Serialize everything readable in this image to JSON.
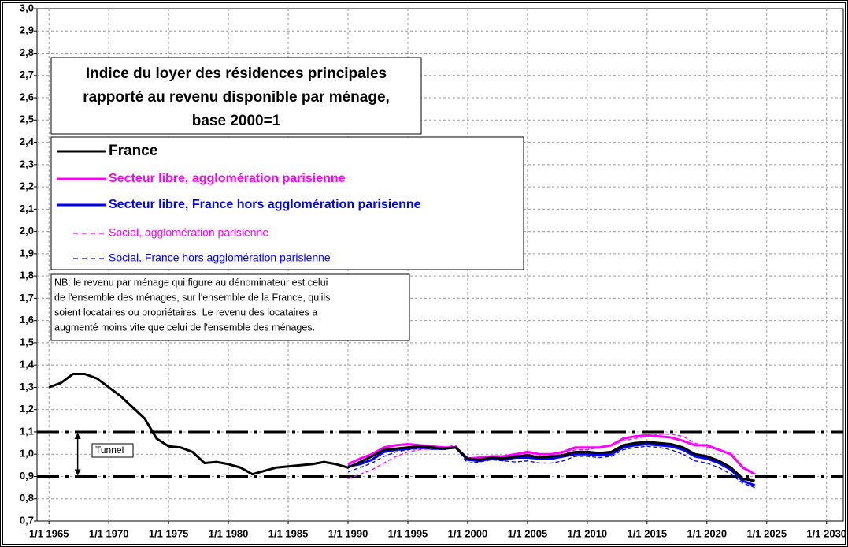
{
  "chart_data": {
    "type": "line",
    "title": [
      "Indice du loyer des résidences principales",
      "rapporté au revenu disponible par ménage,",
      "base 2000=1"
    ],
    "note": [
      "NB: le revenu par ménage qui figure au dénominateur est celui",
      "de l'ensemble des ménages, sur l'ensemble de la France, qu'ils",
      "soient locataires ou propriétaires.  Le revenu des locataires a",
      "augmenté moins vite que celui de l'ensemble des ménages."
    ],
    "annotation": "Tunnel",
    "reference_lines": [
      1.1,
      0.9
    ],
    "x": [
      1965,
      1966,
      1967,
      1968,
      1969,
      1970,
      1971,
      1972,
      1973,
      1974,
      1975,
      1976,
      1977,
      1978,
      1979,
      1980,
      1981,
      1982,
      1983,
      1984,
      1985,
      1986,
      1987,
      1988,
      1989,
      1990,
      1991,
      1992,
      1993,
      1994,
      1995,
      1996,
      1997,
      1998,
      1999,
      2000,
      2001,
      2002,
      2003,
      2004,
      2005,
      2006,
      2007,
      2008,
      2009,
      2010,
      2011,
      2012,
      2013,
      2014,
      2015,
      2016,
      2017,
      2018,
      2019,
      2020,
      2021,
      2022,
      2023,
      2024
    ],
    "series": [
      {
        "name": "France",
        "color": "#000000",
        "dashed": false,
        "bold": true,
        "values": [
          1.3,
          1.32,
          1.36,
          1.36,
          1.34,
          1.3,
          1.26,
          1.21,
          1.16,
          1.07,
          1.035,
          1.03,
          1.01,
          0.96,
          0.965,
          0.955,
          0.94,
          0.91,
          0.925,
          0.94,
          0.945,
          0.95,
          0.955,
          0.965,
          0.955,
          0.94,
          0.965,
          0.99,
          1.02,
          1.025,
          1.03,
          1.035,
          1.03,
          1.025,
          1.03,
          0.98,
          0.975,
          0.985,
          0.98,
          0.99,
          0.995,
          0.985,
          0.99,
          0.995,
          1.01,
          1.01,
          1.005,
          1.01,
          1.04,
          1.05,
          1.055,
          1.05,
          1.045,
          1.03,
          1.0,
          0.99,
          0.97,
          0.94,
          0.89,
          0.88
        ]
      },
      {
        "name": "Secteur libre, agglomération parisienne",
        "color": "#ff00ff",
        "dashed": false,
        "bold": true,
        "values": [
          null,
          null,
          null,
          null,
          null,
          null,
          null,
          null,
          null,
          null,
          null,
          null,
          null,
          null,
          null,
          null,
          null,
          null,
          null,
          null,
          null,
          null,
          null,
          null,
          null,
          0.955,
          0.98,
          1.0,
          1.03,
          1.04,
          1.045,
          1.04,
          1.035,
          1.03,
          1.03,
          0.98,
          0.985,
          0.99,
          0.99,
          1.0,
          1.01,
          1.0,
          1.0,
          1.01,
          1.03,
          1.03,
          1.03,
          1.04,
          1.07,
          1.08,
          1.085,
          1.08,
          1.075,
          1.06,
          1.04,
          1.04,
          1.02,
          1.0,
          0.94,
          0.91
        ]
      },
      {
        "name": "Secteur libre, France hors agglomération parisienne",
        "color": "#0000ff",
        "dashed": false,
        "bold": true,
        "values": [
          null,
          null,
          null,
          null,
          null,
          null,
          null,
          null,
          null,
          null,
          null,
          null,
          null,
          null,
          null,
          null,
          null,
          null,
          null,
          null,
          null,
          null,
          null,
          null,
          null,
          0.945,
          0.955,
          0.975,
          1.01,
          1.02,
          1.025,
          1.03,
          1.025,
          1.025,
          1.03,
          0.975,
          0.97,
          0.98,
          0.975,
          0.985,
          0.985,
          0.98,
          0.98,
          0.99,
          1.0,
          1.0,
          0.995,
          1.0,
          1.03,
          1.04,
          1.045,
          1.04,
          1.035,
          1.02,
          0.99,
          0.98,
          0.96,
          0.93,
          0.88,
          0.86
        ]
      },
      {
        "name": "Social, agglomération parisienne",
        "color": "#ff00ff",
        "dashed": true,
        "bold": false,
        "values": [
          null,
          null,
          null,
          null,
          null,
          null,
          null,
          null,
          null,
          null,
          null,
          null,
          null,
          null,
          null,
          null,
          null,
          null,
          null,
          null,
          null,
          null,
          null,
          null,
          null,
          0.89,
          0.91,
          0.93,
          0.96,
          0.99,
          1.01,
          1.02,
          1.025,
          1.03,
          1.04,
          0.975,
          0.98,
          0.99,
          0.99,
          1.0,
          1.0,
          0.99,
          0.99,
          1.0,
          1.02,
          1.02,
          1.03,
          1.04,
          1.06,
          1.07,
          1.08,
          1.09,
          1.09,
          1.08,
          1.05,
          1.03,
          1.02,
          1.0,
          0.94,
          0.91
        ]
      },
      {
        "name": "Social, France hors agglomération parisienne",
        "color": "#0000ff",
        "dashed": true,
        "bold": false,
        "values": [
          null,
          null,
          null,
          null,
          null,
          null,
          null,
          null,
          null,
          null,
          null,
          null,
          null,
          null,
          null,
          null,
          null,
          null,
          null,
          null,
          null,
          null,
          null,
          null,
          null,
          0.92,
          0.94,
          0.96,
          0.99,
          1.01,
          1.02,
          1.025,
          1.025,
          1.02,
          1.03,
          0.96,
          0.965,
          0.975,
          0.97,
          0.965,
          0.97,
          0.96,
          0.96,
          0.97,
          0.99,
          0.99,
          0.985,
          0.99,
          1.02,
          1.03,
          1.035,
          1.03,
          1.02,
          1.0,
          0.97,
          0.96,
          0.94,
          0.91,
          0.87,
          0.85
        ]
      }
    ],
    "xlim": [
      1964,
      2031.4
    ],
    "xticks": [
      {
        "value": 1965,
        "label": "1/1 1965"
      },
      {
        "value": 1970,
        "label": "1/1 1970"
      },
      {
        "value": 1975,
        "label": "1/1 1975"
      },
      {
        "value": 1980,
        "label": "1/1 1980"
      },
      {
        "value": 1985,
        "label": "1/1 1985"
      },
      {
        "value": 1990,
        "label": "1/1 1990"
      },
      {
        "value": 1995,
        "label": "1/1 1995"
      },
      {
        "value": 2000,
        "label": "1/1 2000"
      },
      {
        "value": 2005,
        "label": "1/1 2005"
      },
      {
        "value": 2010,
        "label": "1/1 2010"
      },
      {
        "value": 2015,
        "label": "1/1 2015"
      },
      {
        "value": 2020,
        "label": "1/1 2020"
      },
      {
        "value": 2025,
        "label": "1/1 2025"
      },
      {
        "value": 2030,
        "label": "1/1 2030"
      }
    ],
    "ylim": [
      0.7,
      3.0
    ],
    "yticks": [
      {
        "value": 0.7,
        "label": "0,7"
      },
      {
        "value": 0.8,
        "label": "0,8"
      },
      {
        "value": 0.9,
        "label": "0,9"
      },
      {
        "value": 1.0,
        "label": "1,0"
      },
      {
        "value": 1.1,
        "label": "1,1"
      },
      {
        "value": 1.2,
        "label": "1,2"
      },
      {
        "value": 1.3,
        "label": "1,3"
      },
      {
        "value": 1.4,
        "label": "1,4"
      },
      {
        "value": 1.5,
        "label": "1,5"
      },
      {
        "value": 1.6,
        "label": "1,6"
      },
      {
        "value": 1.7,
        "label": "1,7"
      },
      {
        "value": 1.8,
        "label": "1,8"
      },
      {
        "value": 1.9,
        "label": "1,9"
      },
      {
        "value": 2.0,
        "label": "2,0"
      },
      {
        "value": 2.1,
        "label": "2,1"
      },
      {
        "value": 2.2,
        "label": "2,2"
      },
      {
        "value": 2.3,
        "label": "2,3"
      },
      {
        "value": 2.4,
        "label": "2,4"
      },
      {
        "value": 2.5,
        "label": "2,5"
      },
      {
        "value": 2.6,
        "label": "2,6"
      },
      {
        "value": 2.7,
        "label": "2,7"
      },
      {
        "value": 2.8,
        "label": "2,8"
      },
      {
        "value": 2.9,
        "label": "2,9"
      },
      {
        "value": 3.0,
        "label": "3,0"
      }
    ],
    "grid": true
  }
}
